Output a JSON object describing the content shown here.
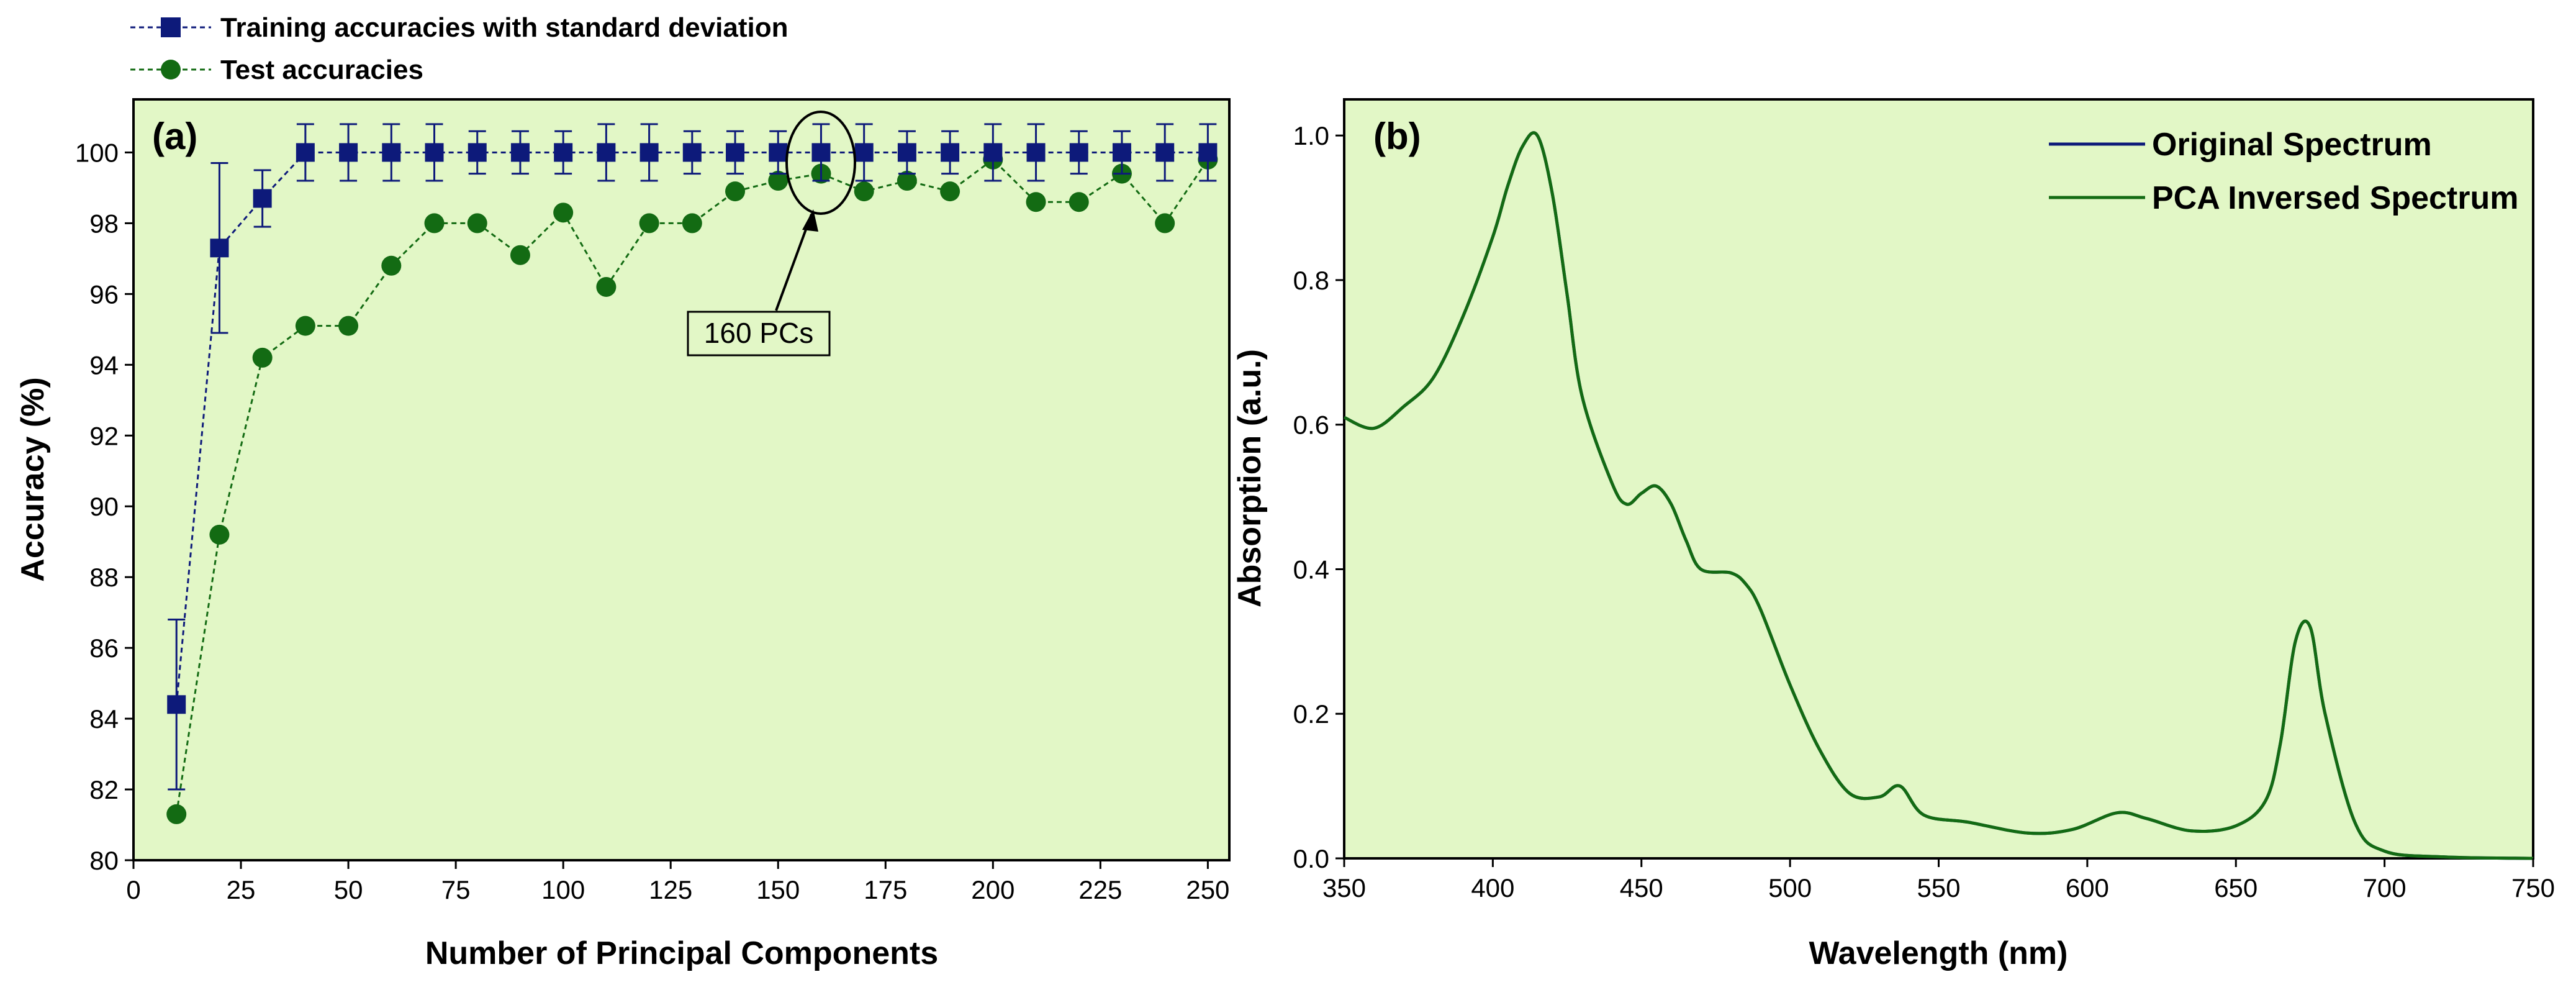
{
  "chart_data": [
    {
      "type": "line",
      "panel_label": "(a)",
      "xlabel": "Number of Principal Components",
      "ylabel": "Accuracy (%)",
      "xlim": [
        0,
        255
      ],
      "ylim": [
        80,
        101.5
      ],
      "xticks": [
        0,
        25,
        50,
        75,
        100,
        125,
        150,
        175,
        200,
        225,
        250
      ],
      "yticks": [
        80,
        82,
        84,
        86,
        88,
        90,
        92,
        94,
        96,
        98,
        100
      ],
      "grid": false,
      "background": "#e2f7c6",
      "legend_position": "above-left",
      "annotation": {
        "text": "160 PCs",
        "target_x": 160,
        "target_y": 99.6
      },
      "series": [
        {
          "name": "Training accuracies with standard deviation",
          "marker": "square",
          "color": "#0d1a7a",
          "x": [
            10,
            20,
            30,
            40,
            50,
            60,
            70,
            80,
            90,
            100,
            110,
            120,
            130,
            140,
            150,
            160,
            170,
            180,
            190,
            200,
            210,
            220,
            230,
            240,
            250
          ],
          "y": [
            84.4,
            97.3,
            98.7,
            100,
            100,
            100,
            100,
            100,
            100,
            100,
            100,
            100,
            100,
            100,
            100,
            100,
            100,
            100,
            100,
            100,
            100,
            100,
            100,
            100,
            100
          ],
          "error": [
            2.4,
            2.4,
            0.8,
            0.8,
            0.8,
            0.8,
            0.8,
            0.6,
            0.6,
            0.6,
            0.8,
            0.8,
            0.6,
            0.6,
            0.6,
            0.8,
            0.8,
            0.6,
            0.6,
            0.8,
            0.8,
            0.6,
            0.6,
            0.8,
            0.8
          ]
        },
        {
          "name": "Test accuracies",
          "marker": "circle",
          "color": "#136b13",
          "x": [
            10,
            20,
            30,
            40,
            50,
            60,
            70,
            80,
            90,
            100,
            110,
            120,
            130,
            140,
            150,
            160,
            170,
            180,
            190,
            200,
            210,
            220,
            230,
            240,
            250
          ],
          "y": [
            81.3,
            89.2,
            94.2,
            95.1,
            95.1,
            96.8,
            98.0,
            98.0,
            97.1,
            98.3,
            96.2,
            98.0,
            98.0,
            98.9,
            99.2,
            99.4,
            98.9,
            99.2,
            98.9,
            99.8,
            98.6,
            98.6,
            99.4,
            98.0,
            99.8
          ]
        }
      ]
    },
    {
      "type": "line",
      "panel_label": "(b)",
      "xlabel": "Wavelength (nm)",
      "ylabel": "Absorption (a.u.)",
      "xlim": [
        350,
        750
      ],
      "ylim": [
        0,
        1.05
      ],
      "xticks": [
        350,
        400,
        450,
        500,
        550,
        600,
        650,
        700,
        750
      ],
      "yticks": [
        0.0,
        0.2,
        0.4,
        0.6,
        0.8,
        1.0
      ],
      "ytick_labels": [
        "0.0",
        "0.2",
        "0.4",
        "0.6",
        "0.8",
        "1.0"
      ],
      "grid": false,
      "background": "#e2f7c6",
      "legend_position": "top-right",
      "series": [
        {
          "name": "Original Spectrum",
          "color": "#0d1a7a",
          "x": [
            350,
            360,
            370,
            380,
            390,
            400,
            405,
            410,
            415,
            420,
            425,
            430,
            440,
            445,
            450,
            455,
            460,
            465,
            470,
            480,
            485,
            490,
            500,
            510,
            520,
            530,
            537,
            545,
            560,
            580,
            595,
            610,
            620,
            635,
            650,
            660,
            665,
            670,
            675,
            680,
            690,
            700,
            720,
            750
          ],
          "y": [
            0.61,
            0.595,
            0.625,
            0.665,
            0.75,
            0.86,
            0.93,
            0.985,
            1.0,
            0.92,
            0.78,
            0.64,
            0.52,
            0.49,
            0.505,
            0.515,
            0.49,
            0.44,
            0.4,
            0.395,
            0.38,
            0.345,
            0.24,
            0.15,
            0.09,
            0.085,
            0.1,
            0.06,
            0.05,
            0.035,
            0.04,
            0.063,
            0.055,
            0.038,
            0.045,
            0.08,
            0.16,
            0.3,
            0.32,
            0.2,
            0.05,
            0.01,
            0.002,
            0.0
          ]
        },
        {
          "name": "PCA Inversed Spectrum",
          "color": "#136b13",
          "x": [
            350,
            360,
            370,
            380,
            390,
            400,
            405,
            410,
            415,
            420,
            425,
            430,
            440,
            445,
            450,
            455,
            460,
            465,
            470,
            480,
            485,
            490,
            500,
            510,
            520,
            530,
            537,
            545,
            560,
            580,
            595,
            610,
            620,
            635,
            650,
            660,
            665,
            670,
            675,
            680,
            690,
            700,
            720,
            750
          ],
          "y": [
            0.61,
            0.595,
            0.625,
            0.665,
            0.75,
            0.86,
            0.93,
            0.985,
            1.0,
            0.92,
            0.78,
            0.64,
            0.52,
            0.49,
            0.505,
            0.515,
            0.49,
            0.44,
            0.4,
            0.395,
            0.38,
            0.345,
            0.24,
            0.15,
            0.09,
            0.085,
            0.1,
            0.06,
            0.05,
            0.035,
            0.04,
            0.063,
            0.055,
            0.038,
            0.045,
            0.08,
            0.16,
            0.3,
            0.32,
            0.2,
            0.05,
            0.01,
            0.002,
            0.0
          ]
        }
      ]
    }
  ]
}
